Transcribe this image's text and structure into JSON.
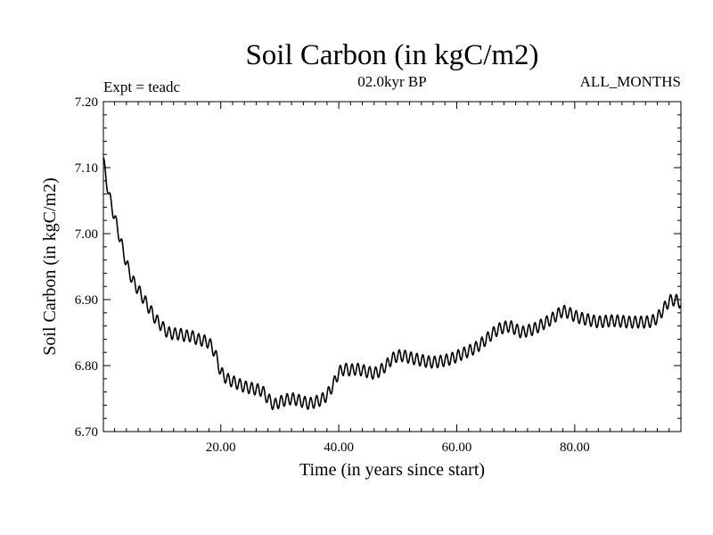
{
  "chart_data": {
    "type": "line",
    "title": "Soil Carbon (in kgC/m2)",
    "subtitle_left": "Expt = teadc",
    "subtitle_center": "02.0kyr BP",
    "subtitle_right": "ALL_MONTHS",
    "xlabel": "Time (in years since start)",
    "ylabel": "Soil Carbon (in kgC/m2)",
    "xlim": [
      0.1,
      98.0
    ],
    "ylim": [
      6.7,
      7.2
    ],
    "xticks": [
      20,
      40,
      60,
      80
    ],
    "xtick_labels": [
      "20.00",
      "40.00",
      "60.00",
      "80.00"
    ],
    "yticks": [
      6.7,
      6.8,
      6.9,
      7.0,
      7.1,
      7.2
    ],
    "ytick_labels": [
      "6.70",
      "6.80",
      "6.90",
      "7.00",
      "7.10",
      "7.20"
    ],
    "grid": false,
    "series": [
      {
        "name": "Soil Carbon",
        "seasonal_amplitude": 0.009,
        "x": [
          0.1,
          1,
          2,
          3,
          4,
          5,
          6,
          7,
          8,
          9,
          10,
          11,
          12,
          13,
          14,
          15,
          16,
          17,
          18,
          19,
          20,
          21,
          22,
          23,
          24,
          25,
          26,
          27,
          28,
          29,
          30,
          31,
          32,
          33,
          34,
          35,
          36,
          37,
          38,
          39,
          40,
          41,
          42,
          43,
          44,
          45,
          46,
          47,
          48,
          49,
          50,
          51,
          52,
          53,
          54,
          55,
          56,
          57,
          58,
          59,
          60,
          61,
          62,
          63,
          64,
          65,
          66,
          67,
          68,
          69,
          70,
          71,
          72,
          73,
          74,
          75,
          76,
          77,
          78,
          79,
          80,
          81,
          82,
          83,
          84,
          85,
          86,
          87,
          88,
          89,
          90,
          91,
          92,
          93,
          94,
          95,
          96,
          97,
          98
        ],
        "y": [
          7.11,
          7.06,
          7.025,
          6.99,
          6.955,
          6.93,
          6.915,
          6.9,
          6.885,
          6.87,
          6.86,
          6.85,
          6.848,
          6.848,
          6.845,
          6.845,
          6.84,
          6.838,
          6.835,
          6.82,
          6.79,
          6.78,
          6.776,
          6.772,
          6.768,
          6.766,
          6.764,
          6.762,
          6.75,
          6.74,
          6.745,
          6.748,
          6.75,
          6.748,
          6.745,
          6.742,
          6.745,
          6.748,
          6.755,
          6.77,
          6.79,
          6.795,
          6.793,
          6.795,
          6.793,
          6.79,
          6.788,
          6.792,
          6.8,
          6.81,
          6.815,
          6.815,
          6.812,
          6.81,
          6.808,
          6.806,
          6.805,
          6.806,
          6.808,
          6.81,
          6.814,
          6.818,
          6.822,
          6.826,
          6.832,
          6.84,
          6.848,
          6.855,
          6.858,
          6.86,
          6.855,
          6.85,
          6.853,
          6.855,
          6.86,
          6.865,
          6.87,
          6.877,
          6.883,
          6.88,
          6.875,
          6.872,
          6.87,
          6.868,
          6.866,
          6.867,
          6.868,
          6.868,
          6.867,
          6.866,
          6.866,
          6.866,
          6.866,
          6.867,
          6.872,
          6.885,
          6.898,
          6.9,
          6.895
        ]
      }
    ]
  }
}
